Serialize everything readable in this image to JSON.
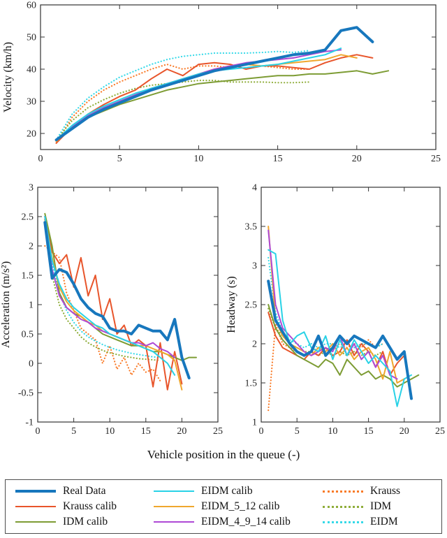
{
  "figure": {
    "xlabel": "Vehicle position in the queue  (-)"
  },
  "series_styles": {
    "real_data": {
      "color": "#1777bd",
      "width": 4,
      "dotted": false
    },
    "krauss_calib": {
      "color": "#e8552b",
      "width": 2,
      "dotted": false
    },
    "idm_calib": {
      "color": "#7d9c34",
      "width": 2,
      "dotted": false
    },
    "eidm_calib": {
      "color": "#29d2e6",
      "width": 2,
      "dotted": false
    },
    "eidm_5_12": {
      "color": "#efa72e",
      "width": 2,
      "dotted": false
    },
    "eidm_4_9_14": {
      "color": "#ae49d5",
      "width": 2,
      "dotted": false
    },
    "krauss": {
      "color": "#f97b28",
      "width": 2.2,
      "dotted": true
    },
    "idm": {
      "color": "#8fad3a",
      "width": 2.2,
      "dotted": true
    },
    "eidm": {
      "color": "#36d9e8",
      "width": 2.2,
      "dotted": true
    }
  },
  "legend": {
    "items": [
      {
        "key": "real_data",
        "label": "Real Data"
      },
      {
        "key": "krauss_calib",
        "label": "Krauss calib"
      },
      {
        "key": "idm_calib",
        "label": "IDM calib"
      },
      {
        "key": "eidm_calib",
        "label": "EIDM calib"
      },
      {
        "key": "eidm_5_12",
        "label": "EIDM_5_12 calib"
      },
      {
        "key": "eidm_4_9_14",
        "label": "EIDM_4_9_14 calib"
      },
      {
        "key": "krauss",
        "label": "Krauss"
      },
      {
        "key": "idm",
        "label": "IDM"
      },
      {
        "key": "eidm",
        "label": "EIDM"
      }
    ]
  },
  "chart_data": [
    {
      "type": "line",
      "title": "",
      "ylabel": "Velocity (km/h)",
      "xlabel": "",
      "xlim": [
        0,
        25
      ],
      "ylim": [
        15,
        60
      ],
      "xticks": [
        0,
        5,
        10,
        15,
        20,
        25
      ],
      "yticks": [
        20,
        30,
        40,
        50,
        60
      ],
      "grid": false,
      "x_is_vehicle_position_starting_at_1": true,
      "series": [
        {
          "name": "Krauss",
          "key": "krauss",
          "x_start": 1,
          "y": [
            17,
            25,
            30,
            33.5,
            36,
            38,
            40,
            41.5,
            40,
            41,
            41,
            40.5,
            41.5,
            41,
            40.5,
            40,
            40
          ]
        },
        {
          "name": "IDM",
          "key": "idm",
          "x_start": 1,
          "y": [
            18,
            24,
            28,
            30.5,
            32.5,
            34,
            35,
            35.5,
            36,
            36.5,
            36.5,
            36,
            36,
            36,
            35.8,
            35.8,
            36
          ]
        },
        {
          "name": "EIDM",
          "key": "eidm",
          "x_start": 1,
          "y": [
            18,
            26,
            31,
            34.5,
            37.5,
            39.5,
            41.5,
            43,
            44,
            44.5,
            45,
            45,
            45,
            45.2,
            45.5,
            45.2,
            45.8
          ]
        },
        {
          "name": "Krauss calib",
          "key": "krauss_calib",
          "x_start": 1,
          "y": [
            17,
            22,
            26,
            29,
            31.5,
            33.5,
            37,
            40,
            38,
            41.5,
            42,
            41.5,
            40,
            41,
            41,
            40.5,
            40,
            42,
            43.5,
            44.5,
            43.5
          ]
        },
        {
          "name": "IDM calib",
          "key": "idm_calib",
          "x_start": 1,
          "y": [
            18,
            22,
            25,
            27,
            29,
            30.5,
            32,
            33.5,
            34.5,
            35.5,
            36,
            36.5,
            37,
            37.5,
            38,
            38,
            38.5,
            38.5,
            39,
            39.5,
            38.5,
            39.5
          ]
        },
        {
          "name": "EIDM_5_12 calib",
          "key": "eidm_5_12",
          "x_start": 1,
          "y": [
            17.5,
            22,
            25.5,
            28,
            30,
            32,
            34,
            35.5,
            37,
            38.5,
            40,
            41,
            41.5,
            41,
            41.5,
            42,
            42.5,
            43,
            44.5,
            43.5
          ]
        },
        {
          "name": "EIDM_4_9_14 calib",
          "key": "eidm_4_9_14",
          "x_start": 1,
          "y": [
            18,
            22,
            25.5,
            28,
            30,
            32,
            34,
            35.5,
            37,
            38.5,
            40,
            41,
            42,
            42.5,
            43,
            43.5,
            44.5,
            45.5,
            46
          ]
        },
        {
          "name": "EIDM calib",
          "key": "eidm_calib",
          "x_start": 1,
          "y": [
            18,
            22.5,
            26,
            28.5,
            30.5,
            32.5,
            34,
            35.5,
            37,
            38.5,
            39.5,
            40,
            40.5,
            41,
            41.5,
            42.5,
            43.5,
            44.5,
            46.5
          ]
        },
        {
          "name": "Real Data",
          "key": "real_data",
          "x_start": 1,
          "y": [
            18,
            21.5,
            25,
            27.5,
            29.5,
            31.5,
            33.5,
            35,
            36.5,
            38,
            39.5,
            40.5,
            41.5,
            42.5,
            43.5,
            44.5,
            45,
            46,
            52,
            53,
            48.5
          ]
        }
      ]
    },
    {
      "type": "line",
      "title": "",
      "ylabel": "Acceleration (m/s²)",
      "xlabel": "",
      "xlim": [
        0,
        25
      ],
      "ylim": [
        -1,
        3
      ],
      "xticks": [
        0,
        5,
        10,
        15,
        20,
        25
      ],
      "yticks": [
        -1,
        -0.5,
        0,
        0.5,
        1,
        1.5,
        2,
        2.5,
        3
      ],
      "grid": false,
      "x_is_vehicle_position_starting_at_1": true,
      "series": [
        {
          "name": "Krauss",
          "key": "krauss",
          "x_start": 1,
          "y": [
            2.0,
            1.9,
            1.8,
            1.2,
            0.9,
            0.6,
            0.5,
            0.4,
            0.0,
            0.3,
            -0.1,
            0.1,
            -0.2,
            0.0,
            -0.15,
            -0.1,
            -0.3
          ]
        },
        {
          "name": "IDM",
          "key": "idm",
          "x_start": 1,
          "y": [
            2.45,
            1.5,
            1.0,
            0.75,
            0.6,
            0.45,
            0.35,
            0.28,
            0.22,
            0.18,
            0.15,
            0.12,
            0.1,
            0.08,
            0.07,
            0.06,
            0.05
          ]
        },
        {
          "name": "EIDM",
          "key": "eidm",
          "x_start": 1,
          "y": [
            2.5,
            1.7,
            1.2,
            0.9,
            0.7,
            0.55,
            0.45,
            0.38,
            0.32,
            0.27,
            0.23,
            0.2,
            0.17,
            0.15,
            0.13,
            0.11,
            0.1
          ]
        },
        {
          "name": "Krauss calib",
          "key": "krauss_calib",
          "x_start": 1,
          "y": [
            2.5,
            1.9,
            1.7,
            1.85,
            1.3,
            1.8,
            1.15,
            1.5,
            0.75,
            1.1,
            0.5,
            0.65,
            0.3,
            0.4,
            0.3,
            -0.4,
            0.35,
            -0.45,
            0.2,
            -0.35
          ]
        },
        {
          "name": "IDM calib",
          "key": "idm_calib",
          "x_start": 1,
          "y": [
            2.55,
            2.0,
            1.2,
            0.95,
            0.85,
            0.8,
            0.7,
            0.6,
            0.5,
            0.45,
            0.4,
            0.35,
            0.3,
            0.3,
            0.25,
            0.2,
            0.2,
            0.15,
            0.1,
            0.05,
            0.1,
            0.1
          ]
        },
        {
          "name": "EIDM_5_12 calib",
          "key": "eidm_5_12",
          "x_start": 1,
          "y": [
            2.45,
            1.8,
            1.3,
            1.05,
            0.9,
            0.8,
            0.7,
            0.65,
            0.55,
            0.5,
            0.45,
            0.4,
            0.35,
            0.3,
            0.3,
            0.25,
            0.2,
            0.15,
            0.05,
            -0.45
          ]
        },
        {
          "name": "EIDM_4_9_14 calib",
          "key": "eidm_4_9_14",
          "x_start": 1,
          "y": [
            2.5,
            1.6,
            1.15,
            0.95,
            0.85,
            0.75,
            0.7,
            0.6,
            0.55,
            0.5,
            0.45,
            0.4,
            0.35,
            0.35,
            0.3,
            0.35,
            0.25,
            0.2,
            0.1
          ]
        },
        {
          "name": "EIDM calib",
          "key": "eidm_calib",
          "x_start": 1,
          "y": [
            2.5,
            1.75,
            1.35,
            1.1,
            0.95,
            0.85,
            0.75,
            0.65,
            0.6,
            0.5,
            0.45,
            0.4,
            0.35,
            0.3,
            0.25,
            0.2,
            0.1,
            0.0,
            -0.2
          ]
        },
        {
          "name": "Real Data",
          "key": "real_data",
          "x_start": 1,
          "y": [
            2.4,
            1.45,
            1.6,
            1.55,
            1.35,
            1.1,
            0.95,
            0.85,
            0.8,
            0.6,
            0.55,
            0.55,
            0.5,
            0.65,
            0.6,
            0.55,
            0.55,
            0.4,
            0.75,
            0.1,
            -0.25
          ]
        }
      ]
    },
    {
      "type": "line",
      "title": "",
      "ylabel": "Headway (s)",
      "xlabel": "",
      "xlim": [
        0,
        25
      ],
      "ylim": [
        1,
        4
      ],
      "xticks": [
        0,
        5,
        10,
        15,
        20,
        25
      ],
      "yticks": [
        1,
        1.5,
        2,
        2.5,
        3,
        3.5,
        4
      ],
      "grid": false,
      "x_is_vehicle_position_starting_at_1": true,
      "series": [
        {
          "name": "Krauss",
          "key": "krauss",
          "x_start": 1,
          "y": [
            1.15,
            2.25,
            2.0,
            1.95,
            1.9,
            1.85,
            1.9,
            1.95,
            1.9,
            1.95,
            2.0,
            1.95,
            2.0,
            1.95,
            2.05,
            1.95,
            2.0
          ]
        },
        {
          "name": "IDM",
          "key": "idm",
          "x_start": 1,
          "y": [
            2.45,
            2.2,
            2.1,
            2.0,
            1.95,
            1.9,
            1.9,
            1.85,
            1.9,
            1.85,
            1.9,
            1.85,
            1.9,
            1.85,
            1.9,
            1.85,
            1.9
          ]
        },
        {
          "name": "EIDM",
          "key": "eidm",
          "x_start": 1,
          "y": [
            3.1,
            2.4,
            2.15,
            2.05,
            2.0,
            1.95,
            2.0,
            1.95,
            2.0,
            2.0,
            1.95,
            2.0,
            1.95,
            2.0,
            2.0,
            1.95,
            2.0
          ]
        },
        {
          "name": "Krauss calib",
          "key": "krauss_calib",
          "x_start": 1,
          "y": [
            2.4,
            2.1,
            1.95,
            1.9,
            1.85,
            1.8,
            1.9,
            1.85,
            1.95,
            1.85,
            1.9,
            2.05,
            1.85,
            2.0,
            1.9,
            1.7,
            1.9,
            1.6,
            1.75,
            1.85
          ]
        },
        {
          "name": "IDM calib",
          "key": "idm_calib",
          "x_start": 1,
          "y": [
            2.5,
            2.2,
            2.05,
            1.95,
            1.85,
            1.8,
            1.75,
            1.7,
            1.8,
            1.75,
            1.6,
            1.8,
            1.7,
            1.6,
            1.65,
            1.55,
            1.6,
            1.55,
            1.45,
            1.5,
            1.55,
            1.6
          ]
        },
        {
          "name": "EIDM_5_12 calib",
          "key": "eidm_5_12",
          "x_start": 1,
          "y": [
            3.5,
            2.3,
            2.1,
            2.0,
            1.95,
            1.9,
            1.85,
            1.95,
            1.9,
            2.0,
            1.85,
            1.95,
            1.8,
            1.9,
            1.95,
            1.8,
            1.55,
            1.9,
            1.5,
            1.55
          ]
        },
        {
          "name": "EIDM_4_9_14 calib",
          "key": "eidm_4_9_14",
          "x_start": 1,
          "y": [
            3.45,
            2.5,
            2.2,
            2.1,
            2.0,
            1.9,
            1.85,
            1.9,
            1.95,
            1.9,
            2.1,
            1.85,
            2.0,
            1.8,
            1.9,
            1.7,
            1.85,
            1.6,
            1.55
          ]
        },
        {
          "name": "EIDM calib",
          "key": "eidm_calib",
          "x_start": 1,
          "y": [
            3.2,
            3.15,
            2.3,
            2.0,
            2.1,
            2.15,
            1.95,
            1.9,
            2.1,
            1.8,
            2.05,
            1.85,
            2.05,
            1.9,
            1.75,
            1.85,
            1.75,
            1.65,
            1.2,
            1.55,
            1.6
          ]
        },
        {
          "name": "Real Data",
          "key": "real_data",
          "x_start": 1,
          "y": [
            2.8,
            2.3,
            2.15,
            2.0,
            1.9,
            1.85,
            1.9,
            2.1,
            1.85,
            1.95,
            2.1,
            2.0,
            2.1,
            2.05,
            2.0,
            1.95,
            2.1,
            1.95,
            1.8,
            1.9,
            1.3
          ]
        }
      ]
    }
  ]
}
